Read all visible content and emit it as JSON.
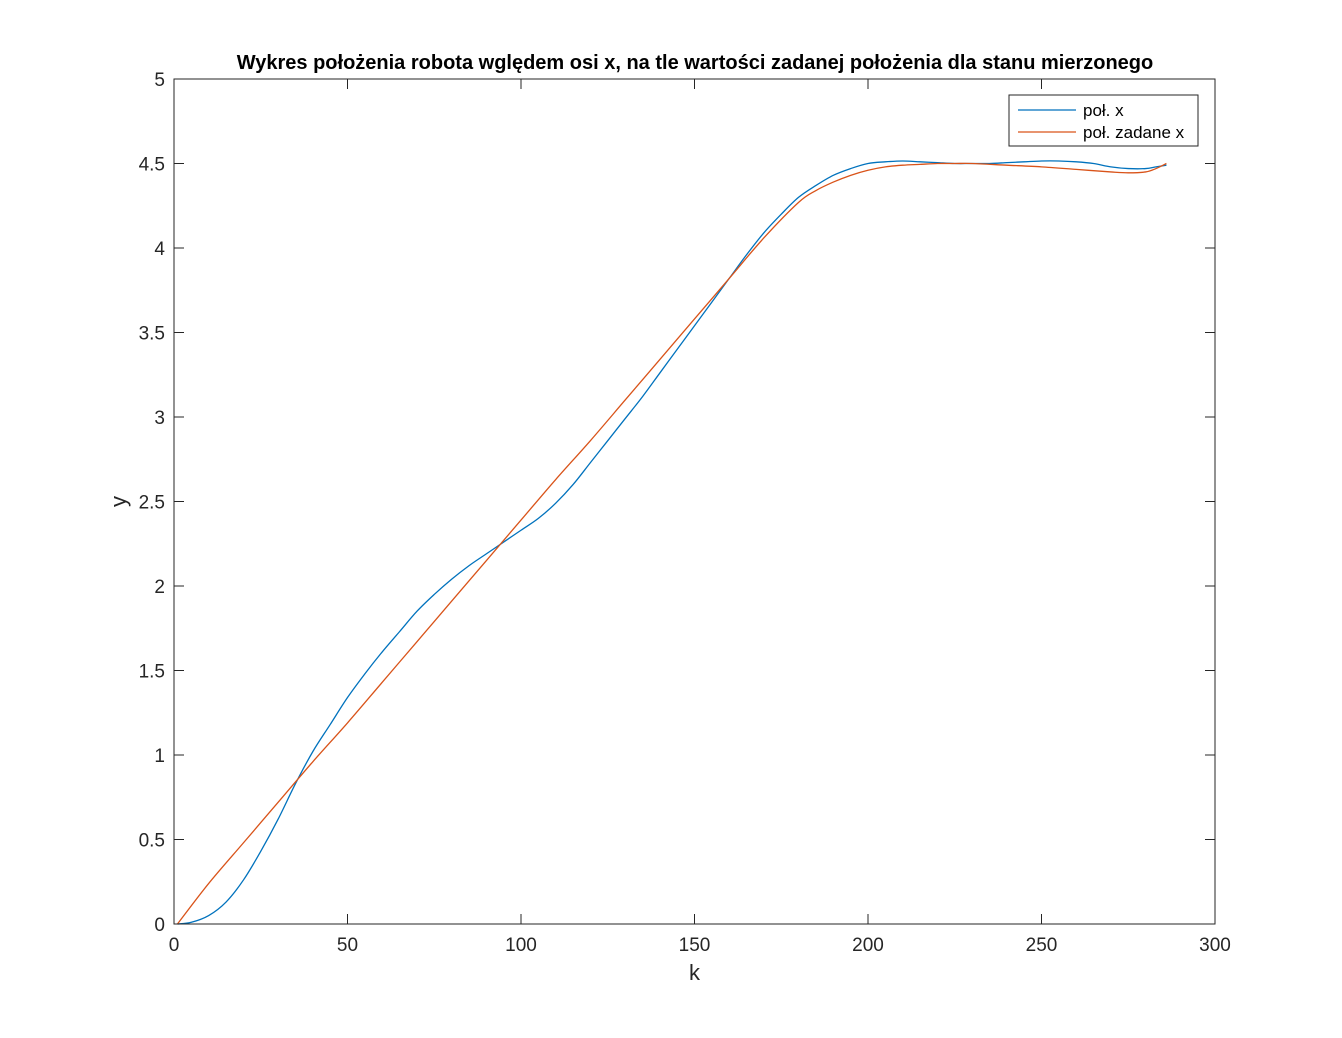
{
  "chart_data": {
    "type": "line",
    "title": "Wykres położenia robota wględem osi x, na tle wartości zadanej położenia dla stanu mierzonego",
    "xlabel": "k",
    "ylabel": "y",
    "xlim": [
      0,
      300
    ],
    "ylim": [
      0,
      5
    ],
    "xticks": [
      0,
      50,
      100,
      150,
      200,
      250,
      300
    ],
    "yticks": [
      0,
      0.5,
      1,
      1.5,
      2,
      2.5,
      3,
      3.5,
      4,
      4.5,
      5
    ],
    "xtick_labels": [
      "0",
      "50",
      "100",
      "150",
      "200",
      "250",
      "300"
    ],
    "ytick_labels": [
      "0",
      "0.5",
      "1",
      "1.5",
      "2",
      "2.5",
      "3",
      "3.5",
      "4",
      "4.5",
      "5"
    ],
    "grid": false,
    "legend_position": "top-right",
    "series": [
      {
        "name": "poł. x",
        "color": "#0072BD",
        "x": [
          1,
          5,
          10,
          15,
          20,
          25,
          30,
          35,
          40,
          45,
          50,
          55,
          60,
          65,
          70,
          75,
          80,
          85,
          90,
          95,
          100,
          105,
          110,
          115,
          120,
          125,
          130,
          135,
          140,
          145,
          150,
          155,
          160,
          165,
          170,
          175,
          180,
          185,
          190,
          195,
          200,
          205,
          210,
          215,
          220,
          225,
          230,
          235,
          240,
          245,
          250,
          255,
          260,
          265,
          270,
          275,
          280,
          283,
          286
        ],
        "y": [
          0,
          0.01,
          0.05,
          0.13,
          0.26,
          0.43,
          0.62,
          0.83,
          1.02,
          1.18,
          1.34,
          1.48,
          1.61,
          1.73,
          1.85,
          1.95,
          2.04,
          2.12,
          2.19,
          2.26,
          2.33,
          2.4,
          2.49,
          2.6,
          2.73,
          2.86,
          2.99,
          3.12,
          3.26,
          3.4,
          3.54,
          3.68,
          3.82,
          3.96,
          4.09,
          4.2,
          4.3,
          4.37,
          4.43,
          4.47,
          4.5,
          4.51,
          4.515,
          4.51,
          4.505,
          4.5,
          4.5,
          4.5,
          4.505,
          4.51,
          4.515,
          4.515,
          4.51,
          4.5,
          4.48,
          4.47,
          4.47,
          4.48,
          4.49
        ]
      },
      {
        "name": "poł. zadane x",
        "color": "#D95319",
        "x": [
          1,
          10,
          20,
          30,
          40,
          50,
          60,
          70,
          80,
          90,
          100,
          110,
          120,
          130,
          140,
          150,
          160,
          170,
          180,
          185,
          190,
          195,
          200,
          205,
          210,
          215,
          220,
          225,
          230,
          240,
          250,
          260,
          270,
          275,
          280,
          283,
          286
        ],
        "y": [
          0,
          0.24,
          0.48,
          0.72,
          0.96,
          1.19,
          1.43,
          1.67,
          1.91,
          2.15,
          2.39,
          2.63,
          2.86,
          3.1,
          3.34,
          3.58,
          3.82,
          4.06,
          4.27,
          4.34,
          4.39,
          4.43,
          4.46,
          4.48,
          4.49,
          4.495,
          4.5,
          4.5,
          4.5,
          4.49,
          4.48,
          4.465,
          4.45,
          4.445,
          4.45,
          4.47,
          4.5
        ]
      }
    ]
  }
}
